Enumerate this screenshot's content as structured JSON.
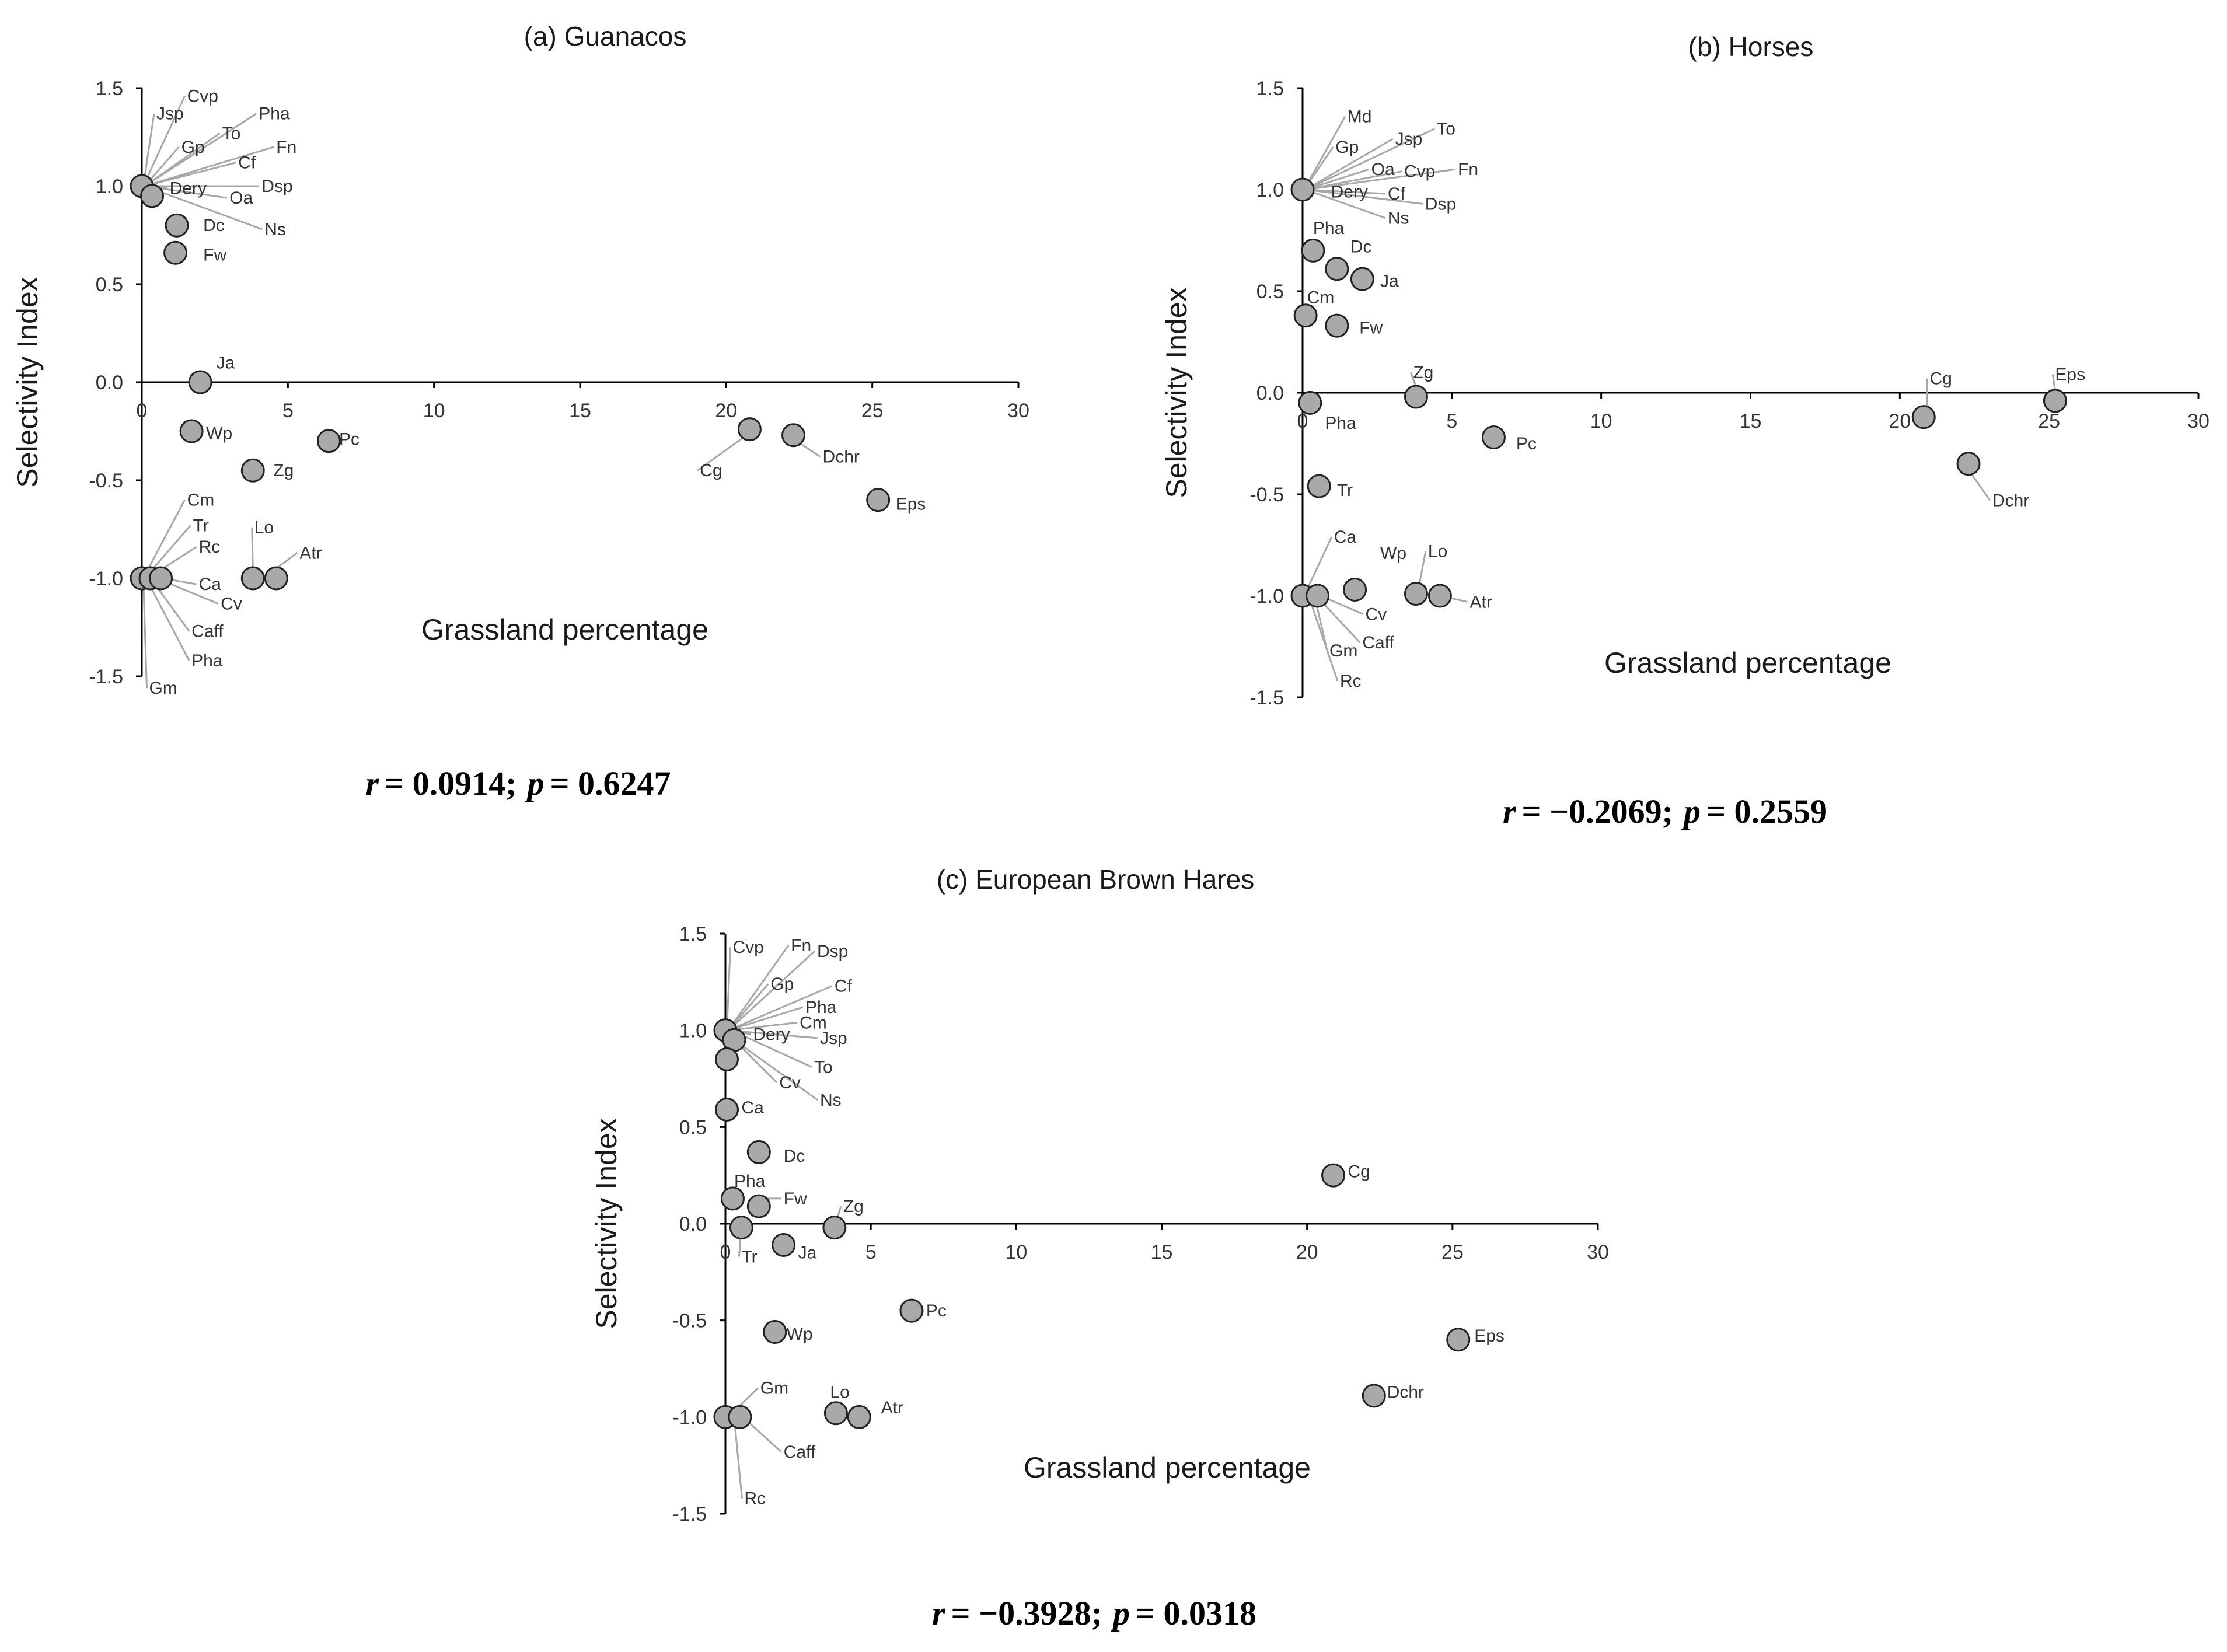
{
  "colors": {
    "marker_fill": "#a9a9a9",
    "marker_stroke": "#222222",
    "leader": "#a8a8a8",
    "axis": "#000000"
  },
  "chart_data": [
    {
      "id": "a",
      "type": "scatter",
      "title": "(a) Guanacos",
      "xlabel": "Grassland percentage",
      "ylabel": "Selectivity Index",
      "xlim": [
        0,
        30
      ],
      "ylim": [
        -1.5,
        1.5
      ],
      "xticks": [
        "0",
        "5",
        "10",
        "15",
        "20",
        "25",
        "30"
      ],
      "yticks": [
        "1.5",
        "1.0",
        "0.5",
        "0.0",
        "-0.5",
        "-1.0",
        "-1.5"
      ],
      "stat": {
        "r_label": "r",
        "r_value": "= 0.0914;",
        "p_label": "p",
        "p_value": "= 0.6247"
      },
      "points": [
        {
          "x": 0.0,
          "y": 1.0
        },
        {
          "x": 0.35,
          "y": 0.95
        },
        {
          "x": 1.2,
          "y": 0.8
        },
        {
          "x": 1.15,
          "y": 0.66
        },
        {
          "x": 2.0,
          "y": 0.0
        },
        {
          "x": 1.7,
          "y": -0.25
        },
        {
          "x": 6.4,
          "y": -0.3
        },
        {
          "x": 3.8,
          "y": -0.45
        },
        {
          "x": 20.8,
          "y": -0.24
        },
        {
          "x": 22.3,
          "y": -0.27
        },
        {
          "x": 25.2,
          "y": -0.6
        },
        {
          "x": 0.0,
          "y": -1.0
        },
        {
          "x": 0.3,
          "y": -1.0
        },
        {
          "x": 0.65,
          "y": -1.0
        },
        {
          "x": 3.8,
          "y": -1.0
        },
        {
          "x": 4.6,
          "y": -1.0
        }
      ],
      "labels": [
        {
          "text": "Cvp",
          "x": 1.55,
          "y": 1.46,
          "ax": 0.05,
          "ay": 1.0
        },
        {
          "text": "Jsp",
          "x": 0.5,
          "y": 1.37,
          "ax": 0.05,
          "ay": 1.0
        },
        {
          "text": "Pha",
          "x": 4.0,
          "y": 1.37,
          "ax": 0.1,
          "ay": 1.0
        },
        {
          "text": "To",
          "x": 2.75,
          "y": 1.27,
          "ax": 0.1,
          "ay": 1.0
        },
        {
          "text": "Gp",
          "x": 1.35,
          "y": 1.2,
          "ax": 0.1,
          "ay": 1.0
        },
        {
          "text": "Fn",
          "x": 4.6,
          "y": 1.2,
          "ax": 0.1,
          "ay": 1.0
        },
        {
          "text": "Cf",
          "x": 3.3,
          "y": 1.12,
          "ax": 0.1,
          "ay": 1.0
        },
        {
          "text": "Dsp",
          "x": 4.1,
          "y": 1.0,
          "ax": 0.1,
          "ay": 1.0
        },
        {
          "text": "Dery",
          "x": 0.95,
          "y": 0.99,
          "ax": 0.1,
          "ay": 1.0
        },
        {
          "text": "Oa",
          "x": 3.0,
          "y": 0.94,
          "ax": 0.1,
          "ay": 1.0
        },
        {
          "text": "Dc",
          "x": 2.1,
          "y": 0.8
        },
        {
          "text": "Ns",
          "x": 4.2,
          "y": 0.78,
          "ax": 0.1,
          "ay": 1.0
        },
        {
          "text": "Fw",
          "x": 2.1,
          "y": 0.65
        },
        {
          "text": "Ja",
          "x": 2.55,
          "y": 0.1
        },
        {
          "text": "Wp",
          "x": 2.2,
          "y": -0.26
        },
        {
          "text": "Pc",
          "x": 6.75,
          "y": -0.29
        },
        {
          "text": "Zg",
          "x": 4.5,
          "y": -0.45
        },
        {
          "text": "Cg",
          "x": 19.1,
          "y": -0.45,
          "ax": 20.7,
          "ay": -0.27
        },
        {
          "text": "Dchr",
          "x": 23.3,
          "y": -0.38,
          "ax": 22.4,
          "ay": -0.3
        },
        {
          "text": "Eps",
          "x": 25.8,
          "y": -0.62
        },
        {
          "text": "Cm",
          "x": 1.55,
          "y": -0.6,
          "ax": 0.05,
          "ay": -1.0
        },
        {
          "text": "Tr",
          "x": 1.75,
          "y": -0.73,
          "ax": 0.1,
          "ay": -1.0
        },
        {
          "text": "Rc",
          "x": 1.95,
          "y": -0.84,
          "ax": 0.2,
          "ay": -1.0
        },
        {
          "text": "Lo",
          "x": 3.85,
          "y": -0.74,
          "ax": 3.8,
          "ay": -0.95
        },
        {
          "text": "Atr",
          "x": 5.4,
          "y": -0.87,
          "ax": 4.6,
          "ay": -0.95
        },
        {
          "text": "Ca",
          "x": 1.95,
          "y": -1.03,
          "ax": 0.7,
          "ay": -1.0
        },
        {
          "text": "Cv",
          "x": 2.7,
          "y": -1.13,
          "ax": 0.5,
          "ay": -1.0
        },
        {
          "text": "Caff",
          "x": 1.7,
          "y": -1.27,
          "ax": 0.3,
          "ay": -1.0
        },
        {
          "text": "Pha",
          "x": 1.7,
          "y": -1.42,
          "ax": 0.15,
          "ay": -1.0
        },
        {
          "text": "Gm",
          "x": 0.25,
          "y": -1.56,
          "ax": 0.05,
          "ay": -1.0
        }
      ]
    },
    {
      "id": "b",
      "type": "scatter",
      "title": "(b) Horses",
      "xlabel": "Grassland percentage",
      "ylabel": "Selectivity Index",
      "xlim": [
        0,
        30
      ],
      "ylim": [
        -1.5,
        1.5
      ],
      "xticks": [
        "0",
        "5",
        "10",
        "15",
        "20",
        "25",
        "30"
      ],
      "yticks": [
        "1.5",
        "1.0",
        "0.5",
        "0.0",
        "-0.5",
        "-1.0",
        "-1.5"
      ],
      "stat": {
        "r_label": "r",
        "r_value": "= −0.2069;",
        "p_label": "p",
        "p_value": "= 0.2559"
      },
      "points": [
        {
          "x": 0.0,
          "y": 1.0
        },
        {
          "x": 0.35,
          "y": 0.7
        },
        {
          "x": 1.15,
          "y": 0.61
        },
        {
          "x": 2.0,
          "y": 0.56
        },
        {
          "x": 0.1,
          "y": 0.38
        },
        {
          "x": 1.15,
          "y": 0.33
        },
        {
          "x": 3.8,
          "y": -0.02
        },
        {
          "x": 0.25,
          "y": -0.05
        },
        {
          "x": 6.4,
          "y": -0.22
        },
        {
          "x": 0.55,
          "y": -0.46
        },
        {
          "x": 20.8,
          "y": -0.12
        },
        {
          "x": 25.2,
          "y": -0.04
        },
        {
          "x": 22.3,
          "y": -0.35
        },
        {
          "x": 0.0,
          "y": -1.0
        },
        {
          "x": 0.5,
          "y": -1.0
        },
        {
          "x": 1.75,
          "y": -0.97
        },
        {
          "x": 3.8,
          "y": -0.99
        },
        {
          "x": 4.6,
          "y": -1.0
        }
      ],
      "labels": [
        {
          "text": "Md",
          "x": 1.5,
          "y": 1.36,
          "ax": 0.05,
          "ay": 1.0
        },
        {
          "text": "Gp",
          "x": 1.1,
          "y": 1.21,
          "ax": 0.05,
          "ay": 1.0
        },
        {
          "text": "Jsp",
          "x": 3.1,
          "y": 1.25,
          "ax": 0.1,
          "ay": 1.0
        },
        {
          "text": "To",
          "x": 4.5,
          "y": 1.3,
          "ax": 0.1,
          "ay": 1.0
        },
        {
          "text": "Oa",
          "x": 2.3,
          "y": 1.1,
          "ax": 0.1,
          "ay": 1.0
        },
        {
          "text": "Cvp",
          "x": 3.4,
          "y": 1.09,
          "ax": 0.1,
          "ay": 1.0
        },
        {
          "text": "Fn",
          "x": 5.2,
          "y": 1.1,
          "ax": 0.1,
          "ay": 1.0
        },
        {
          "text": "Dery",
          "x": 0.95,
          "y": 0.99,
          "ax": 0.1,
          "ay": 1.0
        },
        {
          "text": "Cf",
          "x": 2.85,
          "y": 0.98,
          "ax": 0.1,
          "ay": 1.0
        },
        {
          "text": "Dsp",
          "x": 4.1,
          "y": 0.93,
          "ax": 0.1,
          "ay": 1.0
        },
        {
          "text": "Ns",
          "x": 2.85,
          "y": 0.86,
          "ax": 0.1,
          "ay": 1.0
        },
        {
          "text": "Pha",
          "x": 0.35,
          "y": 0.81
        },
        {
          "text": "Dc",
          "x": 1.6,
          "y": 0.72
        },
        {
          "text": "Ja",
          "x": 2.6,
          "y": 0.55
        },
        {
          "text": "Cm",
          "x": 0.15,
          "y": 0.47
        },
        {
          "text": "Fw",
          "x": 1.9,
          "y": 0.32
        },
        {
          "text": "Zg",
          "x": 3.7,
          "y": 0.1,
          "ax": 3.8,
          "ay": 0.03
        },
        {
          "text": "Pha",
          "x": 0.75,
          "y": -0.15
        },
        {
          "text": "Pc",
          "x": 7.15,
          "y": -0.25
        },
        {
          "text": "Tr",
          "x": 1.15,
          "y": -0.48
        },
        {
          "text": "Cg",
          "x": 21.0,
          "y": 0.07,
          "ax": 20.9,
          "ay": -0.07
        },
        {
          "text": "Eps",
          "x": 25.2,
          "y": 0.09,
          "ax": 25.2,
          "ay": 0.01
        },
        {
          "text": "Dchr",
          "x": 23.1,
          "y": -0.53,
          "ax": 22.4,
          "ay": -0.4
        },
        {
          "text": "Ca",
          "x": 1.05,
          "y": -0.71,
          "ax": 0.05,
          "ay": -1.0
        },
        {
          "text": "Wp",
          "x": 2.6,
          "y": -0.79
        },
        {
          "text": "Lo",
          "x": 4.2,
          "y": -0.78,
          "ax": 3.9,
          "ay": -0.95
        },
        {
          "text": "Atr",
          "x": 5.6,
          "y": -1.03,
          "ax": 4.6,
          "ay": -1.0
        },
        {
          "text": "Cv",
          "x": 2.1,
          "y": -1.09,
          "ax": 0.6,
          "ay": -1.0
        },
        {
          "text": "Caff",
          "x": 2.0,
          "y": -1.23,
          "ax": 0.45,
          "ay": -1.0
        },
        {
          "text": "Gm",
          "x": 0.9,
          "y": -1.27,
          "ax": 0.4,
          "ay": -1.0
        },
        {
          "text": "Rc",
          "x": 1.25,
          "y": -1.42,
          "ax": 0.2,
          "ay": -1.0
        }
      ]
    },
    {
      "id": "c",
      "type": "scatter",
      "title": "(c) European Brown Hares",
      "xlabel": "Grassland percentage",
      "ylabel": "Selectivity Index",
      "xlim": [
        0,
        30
      ],
      "ylim": [
        -1.5,
        1.5
      ],
      "xticks": [
        "0",
        "5",
        "10",
        "15",
        "20",
        "25",
        "30"
      ],
      "yticks": [
        "1.5",
        "1.0",
        "0.5",
        "0.0",
        "-0.5",
        "-1.0",
        "-1.5"
      ],
      "stat": {
        "r_label": "r",
        "r_value": "= −0.3928;",
        "p_label": "p",
        "p_value": "= 0.0318"
      },
      "points": [
        {
          "x": 0.0,
          "y": 1.0
        },
        {
          "x": 0.3,
          "y": 0.95
        },
        {
          "x": 0.05,
          "y": 0.85
        },
        {
          "x": 0.05,
          "y": 0.59
        },
        {
          "x": 1.15,
          "y": 0.37
        },
        {
          "x": 0.25,
          "y": 0.13
        },
        {
          "x": 1.15,
          "y": 0.09
        },
        {
          "x": 0.55,
          "y": -0.02
        },
        {
          "x": 3.75,
          "y": -0.02
        },
        {
          "x": 2.0,
          "y": -0.11
        },
        {
          "x": 20.9,
          "y": 0.25
        },
        {
          "x": 6.4,
          "y": -0.45
        },
        {
          "x": 1.7,
          "y": -0.56
        },
        {
          "x": 25.2,
          "y": -0.6
        },
        {
          "x": 22.3,
          "y": -0.89
        },
        {
          "x": 0.0,
          "y": -1.0
        },
        {
          "x": 0.5,
          "y": -1.0
        },
        {
          "x": 3.8,
          "y": -0.98
        },
        {
          "x": 4.6,
          "y": -1.0
        }
      ],
      "labels": [
        {
          "text": "Cvp",
          "x": 0.25,
          "y": 1.43,
          "ax": 0.05,
          "ay": 1.0
        },
        {
          "text": "Fn",
          "x": 2.25,
          "y": 1.44,
          "ax": 0.1,
          "ay": 1.0
        },
        {
          "text": "Dsp",
          "x": 3.15,
          "y": 1.41,
          "ax": 0.1,
          "ay": 1.0
        },
        {
          "text": "Gp",
          "x": 1.55,
          "y": 1.24,
          "ax": 0.1,
          "ay": 1.0
        },
        {
          "text": "Cf",
          "x": 3.75,
          "y": 1.23,
          "ax": 0.1,
          "ay": 1.0
        },
        {
          "text": "Pha",
          "x": 2.75,
          "y": 1.12,
          "ax": 0.1,
          "ay": 1.0
        },
        {
          "text": "Cm",
          "x": 2.55,
          "y": 1.04,
          "ax": 0.1,
          "ay": 1.0
        },
        {
          "text": "Dery",
          "x": 0.95,
          "y": 0.98,
          "ax": 0.1,
          "ay": 1.0
        },
        {
          "text": "Jsp",
          "x": 3.25,
          "y": 0.96,
          "ax": 0.1,
          "ay": 1.0
        },
        {
          "text": "To",
          "x": 3.05,
          "y": 0.81,
          "ax": 0.2,
          "ay": 1.0
        },
        {
          "text": "Cv",
          "x": 1.85,
          "y": 0.73,
          "ax": 0.3,
          "ay": 0.95
        },
        {
          "text": "Ns",
          "x": 3.25,
          "y": 0.64,
          "ax": 0.3,
          "ay": 0.95
        },
        {
          "text": "Ca",
          "x": 0.55,
          "y": 0.6
        },
        {
          "text": "Dc",
          "x": 2.0,
          "y": 0.35
        },
        {
          "text": "Pha",
          "x": 0.3,
          "y": 0.22
        },
        {
          "text": "Fw",
          "x": 2.0,
          "y": 0.13,
          "ax": 1.15,
          "ay": 0.13
        },
        {
          "text": "Zg",
          "x": 4.05,
          "y": 0.09,
          "ax": 3.75,
          "ay": -0.02
        },
        {
          "text": "Tr",
          "x": 0.55,
          "y": -0.17,
          "ax": 0.55,
          "ay": -0.02
        },
        {
          "text": "Ja",
          "x": 2.5,
          "y": -0.15
        },
        {
          "text": "Cg",
          "x": 21.4,
          "y": 0.27
        },
        {
          "text": "Pc",
          "x": 6.9,
          "y": -0.45
        },
        {
          "text": "Wp",
          "x": 2.1,
          "y": -0.57
        },
        {
          "text": "Eps",
          "x": 25.75,
          "y": -0.58
        },
        {
          "text": "Dchr",
          "x": 22.75,
          "y": -0.87
        },
        {
          "text": "Gm",
          "x": 1.2,
          "y": -0.85,
          "ax": 0.1,
          "ay": -1.0
        },
        {
          "text": "Lo",
          "x": 3.6,
          "y": -0.87
        },
        {
          "text": "Atr",
          "x": 5.35,
          "y": -0.95
        },
        {
          "text": "Caff",
          "x": 2.0,
          "y": -1.18,
          "ax": 0.6,
          "ay": -1.0
        },
        {
          "text": "Rc",
          "x": 0.65,
          "y": -1.42,
          "ax": 0.3,
          "ay": -1.0
        }
      ]
    }
  ]
}
